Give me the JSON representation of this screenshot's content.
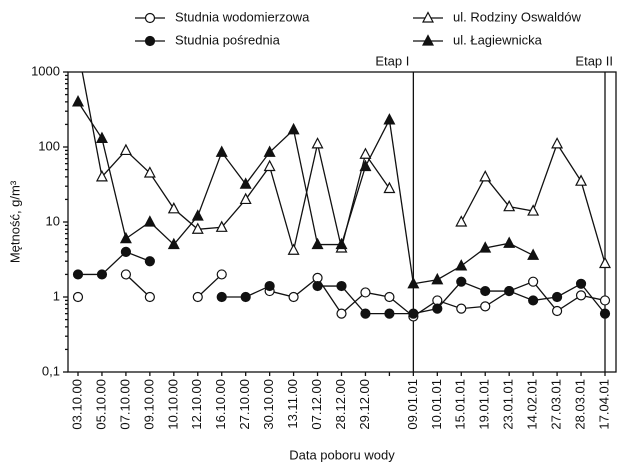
{
  "chart_data": {
    "type": "line",
    "x_label": "Data poboru wody",
    "y_label": "Mętność, g/m³",
    "log_y": true,
    "categories": [
      "03.10.00",
      "05.10.00",
      "07.10.00",
      "09.10.00",
      "10.10.00",
      "12.10.00",
      "16.10.00",
      "27.10.00",
      "30.10.00",
      "13.11.00",
      "07.12.00",
      "28.12.00",
      "29.12.00",
      null,
      "09.01.01",
      "10.01.01",
      "15.01.01",
      "19.01.01",
      "23.01.01",
      "14.02.01",
      "27.03.01",
      "28.03.01",
      "17.04.01"
    ],
    "ylim": [
      0.1,
      1000
    ],
    "yticks": [
      {
        "value": 0.1,
        "label": "0,1"
      },
      1,
      10,
      100,
      1000
    ],
    "annotations": [
      {
        "text": "Etap I",
        "category": "09.01.01"
      },
      {
        "text": "Etap II",
        "category": "17.04.01"
      }
    ],
    "series": [
      {
        "name": "Studnia wodomierzowa",
        "marker": "circle",
        "filled": false,
        "color": "#111",
        "values": [
          1,
          null,
          2,
          1,
          null,
          1,
          2,
          null,
          1.2,
          1,
          1.8,
          0.6,
          1.15,
          1.0,
          0.55,
          0.9,
          0.7,
          0.75,
          1.2,
          1.6,
          0.65,
          1.05,
          0.9
        ]
      },
      {
        "name": "Studnia pośrednia",
        "marker": "circle",
        "filled": true,
        "color": "#111",
        "values": [
          2,
          2,
          4,
          3,
          null,
          null,
          1,
          1,
          1.4,
          null,
          1.4,
          1.4,
          0.6,
          0.6,
          0.6,
          0.7,
          1.6,
          1.2,
          1.2,
          0.9,
          1.0,
          1.5,
          0.6
        ]
      },
      {
        "name": "ul. Rodziny Oswaldów",
        "marker": "triangle",
        "filled": false,
        "color": "#111",
        "values": [
          2000,
          40,
          90,
          45,
          15,
          8,
          8.5,
          20,
          55,
          4.2,
          110,
          4.5,
          80,
          28,
          null,
          null,
          10,
          40,
          16,
          14,
          110,
          35,
          2.8
        ]
      },
      {
        "name": "ul. Łagiewnicka",
        "marker": "triangle",
        "filled": true,
        "color": "#111",
        "values": [
          400,
          130,
          6,
          10,
          5,
          12,
          85,
          32,
          85,
          170,
          5,
          5,
          55,
          230,
          1.5,
          1.7,
          2.6,
          4.5,
          5.2,
          3.6,
          null,
          null,
          null
        ]
      }
    ]
  }
}
